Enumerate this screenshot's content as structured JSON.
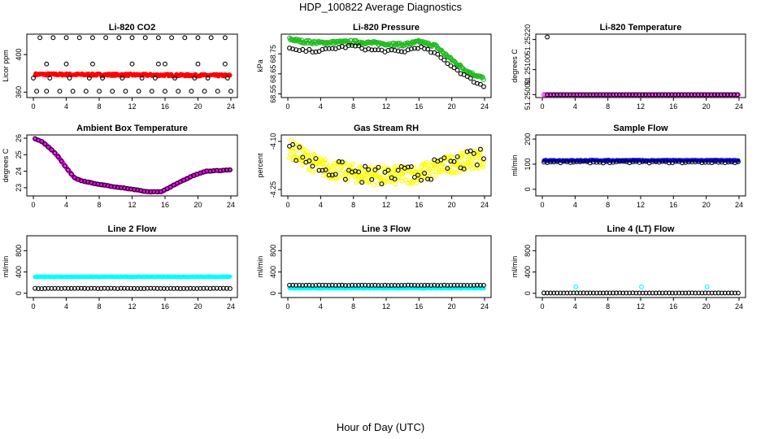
{
  "figure": {
    "title": "HDP_100822  Average Diagnostics",
    "xlabel": "Hour of Day (UTC)"
  },
  "x_axis": {
    "ticks": [
      0,
      4,
      8,
      12,
      16,
      20,
      24
    ],
    "range": [
      -0.5,
      24.5
    ]
  },
  "colors": {
    "black": "#000000",
    "red": "#ff0000",
    "green": "#22bb22",
    "magenta": "#ff00ff",
    "yellow": "#ffff00",
    "blue": "#0000ee",
    "cyan": "#00ffff"
  },
  "chart_data": [
    {
      "id": "co2",
      "type": "scatter",
      "title": "Li-820 CO2",
      "ylabel": "Licor ppm",
      "ylim": [
        356,
        420
      ],
      "yticks": [
        360,
        400
      ],
      "ytick_labels": [
        "360",
        "400"
      ],
      "series": [
        {
          "name": "co2-mean",
          "color": "red",
          "shape": "dot",
          "n": 300,
          "gen": {
            "base": 379,
            "noise": 1.2,
            "slope": -0.05
          }
        },
        {
          "name": "co2-samples",
          "color": "black",
          "shape": "ring",
          "x": [
            0.8,
            2.4,
            4.0,
            5.6,
            7.2,
            8.8,
            10.4,
            12.0,
            13.6,
            15.2,
            16.8,
            18.4,
            20.0,
            21.6,
            23.3,
            1.6,
            4.0,
            7.2,
            12.0,
            15.2,
            16.0,
            20.0,
            23.3,
            0.4,
            1.6,
            3.2,
            4.8,
            6.4,
            8.0,
            9.6,
            11.2,
            12.8,
            14.4,
            16.0,
            17.6,
            19.2,
            20.8,
            22.4,
            24.0,
            0.0,
            2.0,
            4.4,
            6.8,
            8.4,
            10.8,
            13.2,
            14.8,
            17.2,
            19.6,
            21.2,
            23.6
          ],
          "y": [
            418,
            418,
            418,
            418,
            418,
            418,
            418,
            418,
            418,
            418,
            418,
            418,
            418,
            418,
            418,
            390,
            390,
            390,
            390,
            390,
            390,
            390,
            390,
            361,
            361,
            361,
            361,
            361,
            361,
            361,
            361,
            361,
            361,
            361,
            361,
            361,
            361,
            361,
            361,
            375,
            375,
            375,
            375,
            375,
            375,
            375,
            375,
            375,
            375,
            375,
            375
          ]
        }
      ]
    },
    {
      "id": "pressure",
      "type": "scatter",
      "title": "Li-820 Pressure",
      "ylabel": "kPa",
      "ylim": [
        68.54,
        68.84
      ],
      "yticks": [
        68.55,
        68.65,
        68.75
      ],
      "ytick_labels": [
        "68.55",
        "68.65",
        "68.75"
      ],
      "series": [
        {
          "name": "pressure-mean",
          "color": "green",
          "shape": "ring",
          "n": 240,
          "gen": {
            "knots": [
              [
                0,
                68.825
              ],
              [
                2,
                68.81
              ],
              [
                4,
                68.805
              ],
              [
                8,
                68.81
              ],
              [
                12,
                68.8
              ],
              [
                14,
                68.795
              ],
              [
                16,
                68.81
              ],
              [
                18,
                68.79
              ],
              [
                20,
                68.72
              ],
              [
                22,
                68.66
              ],
              [
                24,
                68.625
              ]
            ],
            "noise": 0.008
          }
        },
        {
          "name": "pressure-samples",
          "color": "black",
          "shape": "ring",
          "n": 60,
          "gen": {
            "knots": [
              [
                0,
                68.78
              ],
              [
                1,
                68.765
              ],
              [
                4,
                68.765
              ],
              [
                6,
                68.78
              ],
              [
                8,
                68.79
              ],
              [
                10,
                68.77
              ],
              [
                12,
                68.765
              ],
              [
                14,
                68.76
              ],
              [
                16,
                68.785
              ],
              [
                18,
                68.75
              ],
              [
                20,
                68.69
              ],
              [
                22,
                68.63
              ],
              [
                24,
                68.585
              ]
            ],
            "noise": 0.007
          }
        }
      ]
    },
    {
      "id": "li820-temp",
      "type": "scatter",
      "title": "Li-820 Temperature",
      "ylabel": "degrees C",
      "ylim": [
        51.24995,
        51.25235
      ],
      "yticks": [
        51.25,
        51.251,
        51.2522
      ],
      "ytick_labels": [
        "51.25000",
        "51.25100",
        "51.25220"
      ],
      "series": [
        {
          "name": "temp-mean",
          "color": "magenta",
          "shape": "ring",
          "n": 120,
          "gen": {
            "base": 51.25,
            "noise": 0
          }
        },
        {
          "name": "temp-samples",
          "color": "black",
          "shape": "ring",
          "x": [
            0.6,
            1.0,
            1.4,
            1.8,
            2.2,
            2.6,
            3.0,
            3.4,
            3.8,
            4.2,
            4.6,
            5.0,
            5.4,
            5.8,
            6.2,
            6.6,
            7.0,
            7.4,
            7.8,
            8.2,
            8.6,
            9.0,
            9.4,
            9.8,
            10.2,
            10.6,
            11.0,
            11.4,
            11.8,
            12.2,
            12.6,
            13.0,
            13.4,
            13.8,
            14.2,
            14.6,
            15.0,
            15.4,
            15.8,
            16.2,
            16.6,
            17.0,
            17.4,
            17.8,
            18.2,
            18.6,
            19.0,
            19.4,
            19.8,
            20.2,
            20.6,
            21.0,
            21.4,
            21.8,
            22.2,
            22.6,
            23.0,
            23.4,
            23.8,
            0.6
          ],
          "y": [
            51.25,
            51.25,
            51.25,
            51.25,
            51.25,
            51.25,
            51.25,
            51.25,
            51.25,
            51.25,
            51.25,
            51.25,
            51.25,
            51.25,
            51.25,
            51.25,
            51.25,
            51.25,
            51.25,
            51.25,
            51.25,
            51.25,
            51.25,
            51.25,
            51.25,
            51.25,
            51.25,
            51.25,
            51.25,
            51.25,
            51.25,
            51.25,
            51.25,
            51.25,
            51.25,
            51.25,
            51.25,
            51.25,
            51.25,
            51.25,
            51.25,
            51.25,
            51.25,
            51.25,
            51.25,
            51.25,
            51.25,
            51.25,
            51.25,
            51.25,
            51.25,
            51.25,
            51.25,
            51.25,
            51.25,
            51.25,
            51.25,
            51.25,
            51.25,
            51.2523
          ]
        }
      ]
    },
    {
      "id": "ambient-temp",
      "type": "scatter",
      "title": "Ambient Box Temperature",
      "ylabel": "degrees C",
      "ylim": [
        22.6,
        26.1
      ],
      "yticks": [
        23,
        24,
        25,
        26
      ],
      "ytick_labels": [
        "23",
        "24",
        "25",
        "26"
      ],
      "series": [
        {
          "name": "ambient-mean",
          "color": "magenta",
          "shape": "ring",
          "n": 240,
          "gen": {
            "knots": [
              [
                0,
                26.0
              ],
              [
                1,
                25.8
              ],
              [
                2,
                25.4
              ],
              [
                3,
                24.9
              ],
              [
                4,
                24.2
              ],
              [
                5,
                23.6
              ],
              [
                6,
                23.4
              ],
              [
                8,
                23.2
              ],
              [
                10,
                23.05
              ],
              [
                12,
                22.9
              ],
              [
                14,
                22.75
              ],
              [
                15.5,
                22.75
              ],
              [
                16.5,
                23.0
              ],
              [
                18,
                23.4
              ],
              [
                19.5,
                23.75
              ],
              [
                21,
                24.0
              ],
              [
                23,
                24.05
              ],
              [
                24,
                24.1
              ]
            ],
            "noise": 0.02
          }
        },
        {
          "name": "ambient-samples",
          "color": "black",
          "shape": "ring",
          "n": 60,
          "gen": {
            "knots": [
              [
                0,
                26.0
              ],
              [
                1,
                25.8
              ],
              [
                2,
                25.4
              ],
              [
                3,
                24.9
              ],
              [
                4,
                24.2
              ],
              [
                5,
                23.6
              ],
              [
                6,
                23.4
              ],
              [
                8,
                23.2
              ],
              [
                10,
                23.05
              ],
              [
                12,
                22.9
              ],
              [
                14,
                22.75
              ],
              [
                15.5,
                22.75
              ],
              [
                16.5,
                23.0
              ],
              [
                18,
                23.4
              ],
              [
                19.5,
                23.75
              ],
              [
                21,
                24.0
              ],
              [
                23,
                24.05
              ],
              [
                24,
                24.1
              ]
            ],
            "noise": 0.02
          }
        }
      ]
    },
    {
      "id": "gas-rh",
      "type": "scatter",
      "title": "Gas Stream RH",
      "ylabel": "percent",
      "ylim": [
        -4.265,
        -4.085
      ],
      "yticks": [
        -4.25,
        -4.1
      ],
      "ytick_labels": [
        "-4.25",
        "-4.10"
      ],
      "series": [
        {
          "name": "rh-mean",
          "color": "yellow",
          "shape": "ring",
          "n": 320,
          "gen": {
            "knots": [
              [
                0,
                -4.12
              ],
              [
                4,
                -4.18
              ],
              [
                8,
                -4.2
              ],
              [
                12,
                -4.21
              ],
              [
                16,
                -4.2
              ],
              [
                20,
                -4.17
              ],
              [
                24,
                -4.15
              ]
            ],
            "noise": 0.03
          }
        },
        {
          "name": "rh-samples",
          "color": "black",
          "shape": "ring",
          "n": 60,
          "gen": {
            "knots": [
              [
                0,
                -4.12
              ],
              [
                4,
                -4.18
              ],
              [
                8,
                -4.2
              ],
              [
                12,
                -4.21
              ],
              [
                16,
                -4.2
              ],
              [
                20,
                -4.17
              ],
              [
                24,
                -4.15
              ]
            ],
            "noise": 0.03
          }
        }
      ]
    },
    {
      "id": "sample-flow",
      "type": "scatter",
      "title": "Sample Flow",
      "ylabel": "ml/min",
      "ylim": [
        -20,
        210
      ],
      "yticks": [
        0,
        100,
        200
      ],
      "ytick_labels": [
        "0",
        "100",
        "200"
      ],
      "series": [
        {
          "name": "sample-flow-mean",
          "color": "blue",
          "shape": "dot",
          "n": 300,
          "gen": {
            "base": 115,
            "noise": 2
          }
        },
        {
          "name": "sample-flow-samples",
          "color": "black",
          "shape": "ring",
          "n": 60,
          "gen": {
            "base": 108,
            "noise": 3
          }
        }
      ]
    },
    {
      "id": "line2-flow",
      "type": "scatter",
      "title": "Line 2 Flow",
      "ylabel": "ml/min",
      "ylim": [
        -50,
        1050
      ],
      "yticks": [
        0,
        400,
        800
      ],
      "ytick_labels": [
        "0",
        "400",
        "800"
      ],
      "series": [
        {
          "name": "line2-mean",
          "color": "cyan",
          "shape": "dot",
          "n": 300,
          "gen": {
            "base": 310,
            "noise": 6
          }
        },
        {
          "name": "line2-samples",
          "color": "black",
          "shape": "ring",
          "n": 60,
          "gen": {
            "base": 90,
            "noise": 3
          }
        }
      ]
    },
    {
      "id": "line3-flow",
      "type": "scatter",
      "title": "Line 3 Flow",
      "ylabel": "ml/min",
      "ylim": [
        -50,
        1050
      ],
      "yticks": [
        0,
        400,
        800
      ],
      "ytick_labels": [
        "0",
        "400",
        "800"
      ],
      "series": [
        {
          "name": "line3-mean",
          "color": "cyan",
          "shape": "dot",
          "n": 300,
          "gen": {
            "base": 95,
            "noise": 5
          }
        },
        {
          "name": "line3-samples",
          "color": "black",
          "shape": "ring",
          "n": 60,
          "gen": {
            "base": 150,
            "noise": 3
          }
        }
      ]
    },
    {
      "id": "line4-flow",
      "type": "scatter",
      "title": "Line 4 (LT) Flow",
      "ylabel": "ml/min",
      "ylim": [
        -50,
        1050
      ],
      "yticks": [
        0,
        400,
        800
      ],
      "ytick_labels": [
        "0",
        "400",
        "800"
      ],
      "series": [
        {
          "name": "line4-mean",
          "color": "cyan",
          "shape": "ring",
          "x": [
            0.2,
            4.1,
            12.1,
            20.1
          ],
          "y": [
            5,
            120,
            120,
            120
          ]
        },
        {
          "name": "line4-samples",
          "color": "black",
          "shape": "ring",
          "n": 60,
          "gen": {
            "base": 5,
            "noise": 1
          }
        }
      ]
    }
  ]
}
